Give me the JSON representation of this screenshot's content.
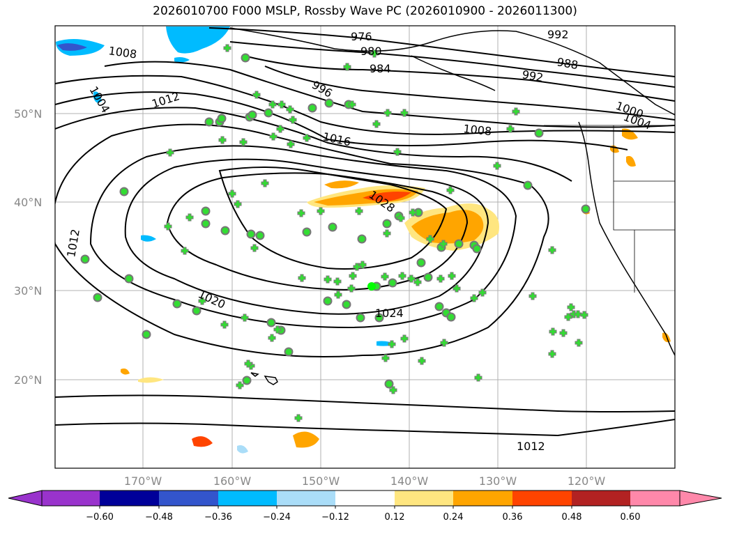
{
  "title": "2026010700 F000 MSLP, Rossby Wave PC (2026010900 - 2026011300)",
  "map": {
    "lat_labels": [
      "50°N",
      "40°N",
      "30°N",
      "20°N"
    ],
    "lon_labels": [
      "170°W",
      "160°W",
      "150°W",
      "140°W",
      "130°W",
      "120°W"
    ],
    "contour_labels": [
      "1008",
      "1004",
      "1012",
      "976",
      "980",
      "984",
      "996",
      "992",
      "988",
      "992",
      "1000",
      "1004",
      "1008",
      "1016",
      "1028",
      "1012",
      "1020",
      "1024",
      "1012"
    ],
    "colors": {
      "isobar": "#000000",
      "grid": "#b0b0b0",
      "coast": "#000000",
      "marker": "#33dd33",
      "marker_outline": "#777777"
    }
  },
  "colorbar": {
    "ticks": [
      "−0.60",
      "−0.48",
      "−0.36",
      "−0.24",
      "−0.12",
      "0.12",
      "0.24",
      "0.36",
      "0.48",
      "0.60"
    ],
    "colors": [
      "#9933cc",
      "#000099",
      "#3355cc",
      "#00bbff",
      "#aaddf8",
      "#ffffff",
      "#ffe680",
      "#ffa500",
      "#ff4400",
      "#b22222",
      "#ff88aa"
    ]
  }
}
